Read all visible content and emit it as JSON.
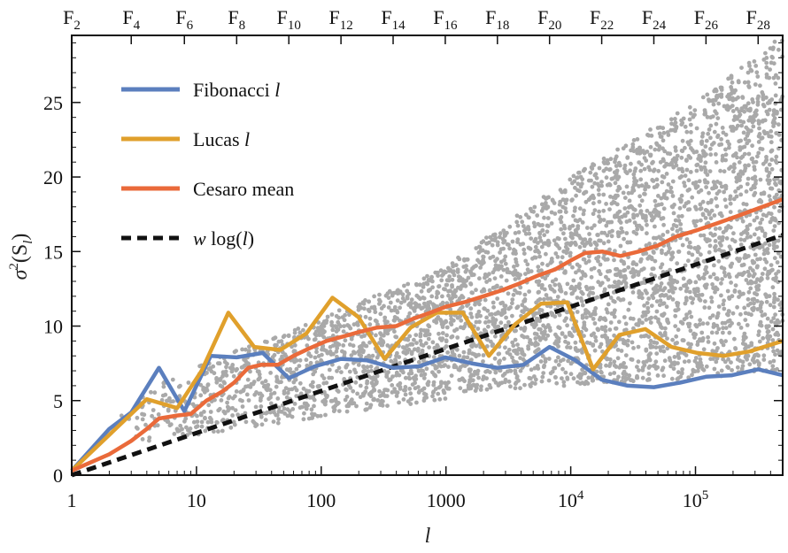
{
  "chart_data": {
    "type": "line",
    "x_scale": "log",
    "xlim": [
      1,
      500000
    ],
    "ylim": [
      0,
      29.5
    ],
    "xlabel_symbol": "l",
    "ylabel_symbol": "σ",
    "ylabel_super": "2",
    "ylabel_paren": "(S",
    "ylabel_sub": "l",
    "ylabel_close": ")",
    "x_ticks": [
      {
        "value": 1,
        "label": "1"
      },
      {
        "value": 10,
        "label": "10"
      },
      {
        "value": 100,
        "label": "100"
      },
      {
        "value": 1000,
        "label": "1000"
      },
      {
        "value": 10000,
        "label": "10",
        "sup": "4"
      },
      {
        "value": 100000,
        "label": "10",
        "sup": "5"
      }
    ],
    "y_ticks": [
      0,
      5,
      10,
      15,
      20,
      25
    ],
    "top_ticks": [
      {
        "value": 1,
        "base": "F",
        "sub": "2"
      },
      {
        "value": 3,
        "base": "F",
        "sub": "4"
      },
      {
        "value": 8,
        "base": "F",
        "sub": "6"
      },
      {
        "value": 21,
        "base": "F",
        "sub": "8"
      },
      {
        "value": 55,
        "base": "F",
        "sub": "10"
      },
      {
        "value": 144,
        "base": "F",
        "sub": "12"
      },
      {
        "value": 377,
        "base": "F",
        "sub": "14"
      },
      {
        "value": 987,
        "base": "F",
        "sub": "16"
      },
      {
        "value": 2584,
        "base": "F",
        "sub": "18"
      },
      {
        "value": 6765,
        "base": "F",
        "sub": "20"
      },
      {
        "value": 17711,
        "base": "F",
        "sub": "22"
      },
      {
        "value": 46368,
        "base": "F",
        "sub": "24"
      },
      {
        "value": 121393,
        "base": "F",
        "sub": "26"
      },
      {
        "value": 317811,
        "base": "F",
        "sub": "28"
      }
    ],
    "legend_position": "top-left",
    "series": [
      {
        "name": "Fibonacci",
        "name_italic": "l",
        "color": "#5b7fbe",
        "points": [
          [
            1,
            0.3
          ],
          [
            2,
            3.1
          ],
          [
            3,
            4.2
          ],
          [
            5,
            7.2
          ],
          [
            8,
            4.3
          ],
          [
            13,
            8.0
          ],
          [
            21,
            7.9
          ],
          [
            34,
            8.2
          ],
          [
            55,
            6.5
          ],
          [
            89,
            7.3
          ],
          [
            144,
            7.8
          ],
          [
            233,
            7.7
          ],
          [
            377,
            7.2
          ],
          [
            610,
            7.3
          ],
          [
            987,
            7.9
          ],
          [
            1597,
            7.5
          ],
          [
            2584,
            7.2
          ],
          [
            4181,
            7.4
          ],
          [
            6765,
            8.6
          ],
          [
            10946,
            7.7
          ],
          [
            17711,
            6.4
          ],
          [
            28657,
            6.0
          ],
          [
            46368,
            5.9
          ],
          [
            75025,
            6.2
          ],
          [
            121393,
            6.6
          ],
          [
            196418,
            6.7
          ],
          [
            317811,
            7.1
          ],
          [
            500000,
            6.7
          ]
        ]
      },
      {
        "name": "Lucas",
        "name_italic": "l",
        "color": "#e0a02c",
        "points": [
          [
            1,
            0.3
          ],
          [
            4,
            5.1
          ],
          [
            7,
            4.5
          ],
          [
            11,
            7.0
          ],
          [
            18,
            10.9
          ],
          [
            29,
            8.6
          ],
          [
            47,
            8.4
          ],
          [
            76,
            9.5
          ],
          [
            123,
            11.9
          ],
          [
            199,
            10.6
          ],
          [
            322,
            7.8
          ],
          [
            521,
            9.9
          ],
          [
            843,
            10.9
          ],
          [
            1364,
            10.9
          ],
          [
            2207,
            8.0
          ],
          [
            3571,
            10.1
          ],
          [
            5778,
            11.5
          ],
          [
            9349,
            11.6
          ],
          [
            15127,
            7.1
          ],
          [
            24476,
            9.4
          ],
          [
            39603,
            9.8
          ],
          [
            64079,
            8.6
          ],
          [
            103682,
            8.2
          ],
          [
            167761,
            8.0
          ],
          [
            271443,
            8.3
          ],
          [
            500000,
            9.0
          ]
        ]
      },
      {
        "name": "Cesaro mean",
        "name_italic": "",
        "color": "#ea6a3a",
        "points": [
          [
            1,
            0.3
          ],
          [
            2,
            1.4
          ],
          [
            3,
            2.3
          ],
          [
            4,
            3.1
          ],
          [
            5,
            3.8
          ],
          [
            7,
            4.0
          ],
          [
            9,
            4.1
          ],
          [
            12,
            5.0
          ],
          [
            16,
            5.6
          ],
          [
            20,
            6.2
          ],
          [
            26,
            7.2
          ],
          [
            33,
            7.4
          ],
          [
            45,
            7.4
          ],
          [
            60,
            8.0
          ],
          [
            80,
            8.5
          ],
          [
            110,
            9.0
          ],
          [
            150,
            9.3
          ],
          [
            200,
            9.6
          ],
          [
            280,
            9.9
          ],
          [
            400,
            10.0
          ],
          [
            550,
            10.5
          ],
          [
            750,
            10.9
          ],
          [
            1000,
            11.3
          ],
          [
            1400,
            11.6
          ],
          [
            2000,
            12.0
          ],
          [
            2800,
            12.4
          ],
          [
            4000,
            12.9
          ],
          [
            5500,
            13.4
          ],
          [
            7500,
            13.8
          ],
          [
            10000,
            14.4
          ],
          [
            13000,
            14.9
          ],
          [
            18000,
            15.0
          ],
          [
            25000,
            14.7
          ],
          [
            35000,
            15.0
          ],
          [
            50000,
            15.4
          ],
          [
            70000,
            16.0
          ],
          [
            100000,
            16.4
          ],
          [
            150000,
            16.9
          ],
          [
            220000,
            17.4
          ],
          [
            320000,
            17.9
          ],
          [
            500000,
            18.5
          ]
        ]
      },
      {
        "name": "w log(",
        "name_italic": "",
        "color": "#111111",
        "dashed": true,
        "points": [
          [
            1,
            0
          ],
          [
            500000,
            16.1
          ]
        ]
      }
    ],
    "scatter_band": {
      "color": "#a9a9a9",
      "lower": [
        [
          1000,
          5.5
        ],
        [
          10000,
          6.0
        ],
        [
          100000,
          6.5
        ],
        [
          500000,
          7.0
        ]
      ],
      "upper": [
        [
          1000,
          14.0
        ],
        [
          10000,
          20.0
        ],
        [
          100000,
          25.0
        ],
        [
          500000,
          29.5
        ]
      ]
    }
  }
}
